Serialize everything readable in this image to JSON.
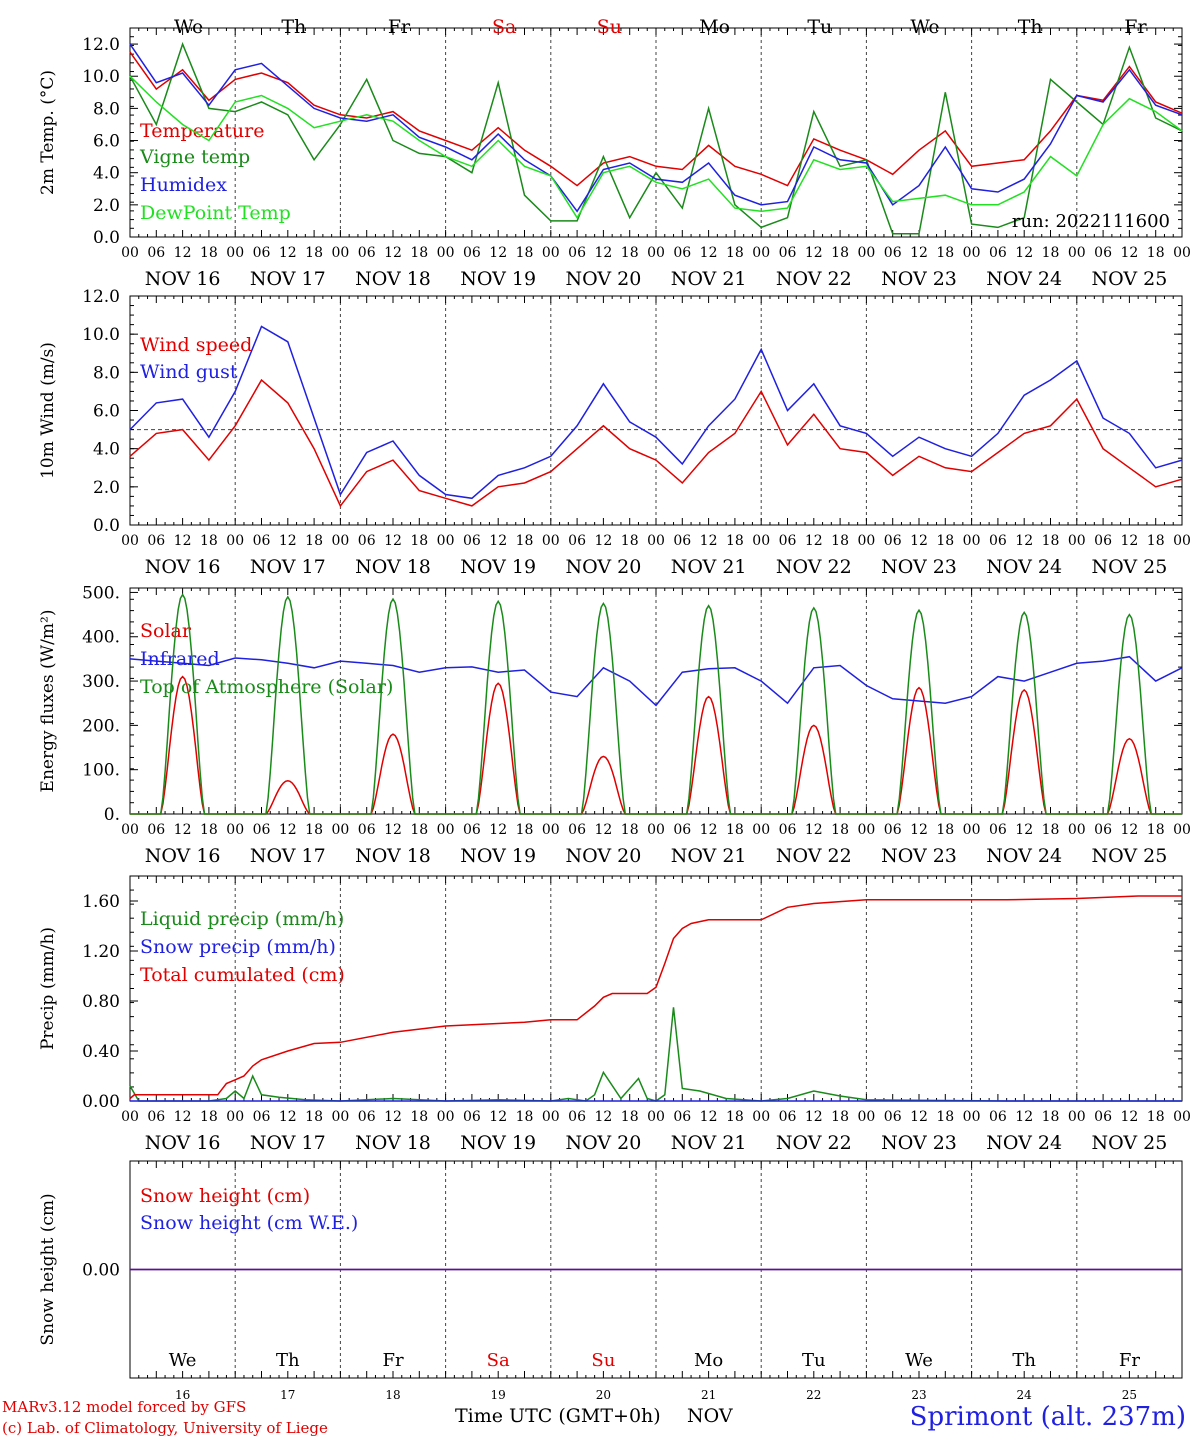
{
  "run_label": "run: 2022111600",
  "days": [
    "We",
    "Th",
    "Fr",
    "Sa",
    "Su",
    "Mo",
    "Tu",
    "We",
    "Th",
    "Fr"
  ],
  "weekend_color": "#e00000",
  "weekend_index": [
    3,
    4
  ],
  "date_labels": [
    "NOV 16",
    "NOV 17",
    "NOV 18",
    "NOV 19",
    "NOV 20",
    "NOV 21",
    "NOV 22",
    "NOV 23",
    "NOV 24",
    "NOV 25"
  ],
  "day_numbers": [
    "16",
    "17",
    "18",
    "19",
    "20",
    "21",
    "22",
    "23",
    "24",
    "25"
  ],
  "hour_ticks": [
    "00",
    "06",
    "12",
    "18"
  ],
  "end_hour_label": "00",
  "footer": {
    "credit_line1": "MARv3.12 model forced by GFS",
    "credit_line2": "(c) Lab. of Climatology, University of Liege",
    "time_label": "Time UTC (GMT+0h)",
    "month_label": "NOV",
    "station": "Sprimont (alt. 237m)"
  },
  "chart_data": [
    {
      "type": "line",
      "ylabel": "2m Temp. (°C)",
      "ylim": [
        0,
        13
      ],
      "yticks": [
        "0.0",
        "2.0",
        "4.0",
        "6.0",
        "8.0",
        "10.0",
        "12.0"
      ],
      "series": [
        {
          "name": "Temperature",
          "color": "#e00000",
          "x": [
            0,
            6,
            12,
            18,
            24,
            30,
            36,
            42,
            48,
            54,
            60,
            66,
            72,
            78,
            84,
            90,
            96,
            102,
            108,
            114,
            120,
            126,
            132,
            138,
            144,
            150,
            156,
            162,
            168,
            174,
            180,
            186,
            192,
            198,
            204,
            210,
            216,
            222,
            228,
            234,
            240
          ],
          "values": [
            11.5,
            9.2,
            10.4,
            8.5,
            9.8,
            10.2,
            9.6,
            8.2,
            7.6,
            7.4,
            7.8,
            6.6,
            6.0,
            5.4,
            6.8,
            5.4,
            4.4,
            3.2,
            4.6,
            5.0,
            4.4,
            4.2,
            5.7,
            4.4,
            3.9,
            3.2,
            6.1,
            5.4,
            4.8,
            3.9,
            5.4,
            6.6,
            4.4,
            4.6,
            4.8,
            6.6,
            8.8,
            8.5,
            10.6,
            8.4,
            7.7
          ]
        },
        {
          "name": "Vigne temp",
          "color": "#1a8a1a",
          "x": [
            0,
            6,
            12,
            18,
            24,
            30,
            36,
            42,
            48,
            54,
            60,
            66,
            72,
            78,
            84,
            90,
            96,
            102,
            108,
            114,
            120,
            126,
            132,
            138,
            144,
            150,
            156,
            162,
            168,
            174,
            180,
            186,
            192,
            198,
            204,
            210,
            216,
            222,
            228,
            234,
            240
          ],
          "values": [
            10.0,
            7.0,
            12.0,
            8.0,
            7.8,
            8.4,
            7.6,
            4.8,
            7.0,
            9.8,
            6.0,
            5.2,
            5.0,
            4.0,
            9.6,
            2.6,
            1.0,
            1.0,
            5.0,
            1.2,
            4.0,
            1.8,
            8.0,
            2.0,
            0.6,
            1.2,
            7.8,
            4.4,
            4.8,
            0.2,
            0.2,
            9.0,
            0.8,
            0.6,
            1.2,
            9.8,
            8.4,
            7.0,
            11.8,
            7.4,
            6.6
          ]
        },
        {
          "name": "Humidex",
          "color": "#2020e0",
          "x": [
            0,
            6,
            12,
            18,
            24,
            30,
            36,
            42,
            48,
            54,
            60,
            66,
            72,
            78,
            84,
            90,
            96,
            102,
            108,
            114,
            120,
            126,
            132,
            138,
            144,
            150,
            156,
            162,
            168,
            174,
            180,
            186,
            192,
            198,
            204,
            210,
            216,
            222,
            228,
            234,
            240
          ],
          "values": [
            12.0,
            9.6,
            10.2,
            8.2,
            10.4,
            10.8,
            9.4,
            8.0,
            7.4,
            7.2,
            7.6,
            6.2,
            5.6,
            4.8,
            6.4,
            4.8,
            3.8,
            1.6,
            4.2,
            4.6,
            3.6,
            3.4,
            4.6,
            2.6,
            2.0,
            2.2,
            5.6,
            4.8,
            4.6,
            2.0,
            3.2,
            5.6,
            3.0,
            2.8,
            3.6,
            5.8,
            8.8,
            8.4,
            10.4,
            8.2,
            7.6
          ]
        },
        {
          "name": "DewPoint Temp",
          "color": "#22e022",
          "x": [
            0,
            6,
            12,
            18,
            24,
            30,
            36,
            42,
            48,
            54,
            60,
            66,
            72,
            78,
            84,
            90,
            96,
            102,
            108,
            114,
            120,
            126,
            132,
            138,
            144,
            150,
            156,
            162,
            168,
            174,
            180,
            186,
            192,
            198,
            204,
            210,
            216,
            222,
            228,
            234,
            240
          ],
          "values": [
            10.0,
            8.4,
            7.0,
            6.0,
            8.4,
            8.8,
            8.0,
            6.8,
            7.2,
            7.6,
            7.2,
            6.0,
            5.0,
            4.4,
            6.0,
            4.4,
            3.8,
            1.2,
            4.0,
            4.4,
            3.4,
            3.0,
            3.6,
            1.8,
            1.6,
            1.8,
            4.8,
            4.2,
            4.4,
            2.2,
            2.4,
            2.6,
            2.0,
            2.0,
            2.8,
            5.0,
            3.8,
            7.0,
            8.6,
            7.8,
            6.6
          ]
        }
      ]
    },
    {
      "type": "line",
      "ylabel": "10m Wind (m/s)",
      "ylim": [
        0,
        12
      ],
      "yticks": [
        "0.0",
        "2.0",
        "4.0",
        "6.0",
        "8.0",
        "10.0",
        "12.0"
      ],
      "ref_line": 5,
      "series": [
        {
          "name": "Wind speed",
          "color": "#e00000",
          "x": [
            0,
            6,
            12,
            18,
            24,
            30,
            36,
            42,
            48,
            54,
            60,
            66,
            72,
            78,
            84,
            90,
            96,
            102,
            108,
            114,
            120,
            126,
            132,
            138,
            144,
            150,
            156,
            162,
            168,
            174,
            180,
            186,
            192,
            198,
            204,
            210,
            216,
            222,
            228,
            234,
            240
          ],
          "values": [
            3.6,
            4.8,
            5.0,
            3.4,
            5.2,
            7.6,
            6.4,
            4.0,
            1.0,
            2.8,
            3.4,
            1.8,
            1.4,
            1.0,
            2.0,
            2.2,
            2.8,
            4.0,
            5.2,
            4.0,
            3.4,
            2.2,
            3.8,
            4.8,
            7.0,
            4.2,
            5.8,
            4.0,
            3.8,
            2.6,
            3.6,
            3.0,
            2.8,
            3.8,
            4.8,
            5.2,
            6.6,
            4.0,
            3.0,
            2.0,
            2.4
          ]
        },
        {
          "name": "Wind gust",
          "color": "#2020e0",
          "x": [
            0,
            6,
            12,
            18,
            24,
            30,
            36,
            42,
            48,
            54,
            60,
            66,
            72,
            78,
            84,
            90,
            96,
            102,
            108,
            114,
            120,
            126,
            132,
            138,
            144,
            150,
            156,
            162,
            168,
            174,
            180,
            186,
            192,
            198,
            204,
            210,
            216,
            222,
            228,
            234,
            240
          ],
          "values": [
            5.0,
            6.4,
            6.6,
            4.6,
            7.0,
            10.4,
            9.6,
            5.6,
            1.6,
            3.8,
            4.4,
            2.6,
            1.6,
            1.4,
            2.6,
            3.0,
            3.6,
            5.2,
            7.4,
            5.4,
            4.6,
            3.2,
            5.2,
            6.6,
            9.2,
            6.0,
            7.4,
            5.2,
            4.8,
            3.6,
            4.6,
            4.0,
            3.6,
            4.8,
            6.8,
            7.6,
            8.6,
            5.6,
            4.8,
            3.0,
            3.4
          ]
        }
      ]
    },
    {
      "type": "line",
      "ylabel": "Energy fluxes (W/m²)",
      "ylim": [
        0,
        510
      ],
      "yticks": [
        "0.",
        "100.",
        "200.",
        "300.",
        "400.",
        "500."
      ],
      "series": [
        {
          "name": "Solar",
          "color": "#e00000",
          "day_peaks": [
            310,
            75,
            180,
            295,
            130,
            265,
            200,
            285,
            280,
            170
          ]
        },
        {
          "name": "Infrared",
          "color": "#2020e0",
          "x": [
            0,
            6,
            12,
            18,
            24,
            30,
            36,
            42,
            48,
            54,
            60,
            66,
            72,
            78,
            84,
            90,
            96,
            102,
            108,
            114,
            120,
            126,
            132,
            138,
            144,
            150,
            156,
            162,
            168,
            174,
            180,
            186,
            192,
            198,
            204,
            210,
            216,
            222,
            228,
            234,
            240
          ],
          "values": [
            350,
            345,
            340,
            335,
            352,
            348,
            340,
            330,
            345,
            340,
            335,
            320,
            330,
            332,
            320,
            325,
            275,
            265,
            330,
            300,
            245,
            320,
            328,
            330,
            300,
            250,
            330,
            335,
            290,
            260,
            255,
            250,
            265,
            310,
            300,
            320,
            340,
            345,
            355,
            300,
            330
          ]
        },
        {
          "name": "Top of Atmosphere (Solar)",
          "color": "#1a8a1a",
          "day_peaks": [
            495,
            490,
            485,
            480,
            475,
            470,
            465,
            460,
            455,
            450
          ]
        }
      ]
    },
    {
      "type": "line",
      "ylabel": "Precip (mm/h)",
      "ylim": [
        0,
        1.8
      ],
      "yticks": [
        "0.00",
        "0.40",
        "0.80",
        "1.20",
        "1.60"
      ],
      "series": [
        {
          "name": "Liquid precip (mm/h)",
          "color": "#1a8a1a",
          "x": [
            0,
            2,
            6,
            12,
            18,
            22,
            24,
            26,
            28,
            30,
            34,
            40,
            48,
            60,
            72,
            84,
            96,
            100,
            104,
            106,
            108,
            112,
            116,
            118,
            120,
            122,
            124,
            126,
            130,
            136,
            144,
            150,
            156,
            162,
            168,
            200,
            240
          ],
          "values": [
            0.12,
            0.0,
            0.0,
            0.0,
            0.0,
            0.02,
            0.08,
            0.02,
            0.2,
            0.05,
            0.03,
            0.01,
            0.0,
            0.02,
            0.0,
            0.01,
            0.0,
            0.02,
            0.0,
            0.05,
            0.23,
            0.02,
            0.18,
            0.02,
            0.0,
            0.05,
            0.75,
            0.1,
            0.08,
            0.02,
            0.0,
            0.02,
            0.08,
            0.04,
            0.01,
            0.0,
            0.0
          ]
        },
        {
          "name": "Snow precip (mm/h)",
          "color": "#2020e0",
          "x": [
            0,
            240
          ],
          "values": [
            0,
            0
          ]
        },
        {
          "name": "Total cumulated (cm)",
          "color": "#e00000",
          "x": [
            0,
            1,
            20,
            22,
            24,
            26,
            28,
            30,
            36,
            42,
            48,
            60,
            72,
            84,
            90,
            96,
            102,
            106,
            108,
            110,
            112,
            118,
            120,
            122,
            124,
            126,
            128,
            132,
            144,
            150,
            156,
            168,
            180,
            200,
            216,
            230,
            240
          ],
          "values": [
            0.02,
            0.05,
            0.05,
            0.14,
            0.17,
            0.2,
            0.28,
            0.33,
            0.4,
            0.46,
            0.47,
            0.55,
            0.6,
            0.62,
            0.63,
            0.65,
            0.65,
            0.76,
            0.83,
            0.86,
            0.86,
            0.86,
            0.91,
            1.1,
            1.3,
            1.38,
            1.42,
            1.45,
            1.45,
            1.55,
            1.58,
            1.61,
            1.61,
            1.61,
            1.62,
            1.64,
            1.64
          ]
        }
      ]
    },
    {
      "type": "line",
      "ylabel": "Snow height (cm)",
      "ylim": [
        -1,
        1
      ],
      "yticks": [
        "0.00"
      ],
      "series": [
        {
          "name": "Snow height (cm)",
          "color": "#e00000",
          "x": [
            0,
            240
          ],
          "values": [
            0,
            0
          ]
        },
        {
          "name": "Snow height (cm W.E.)",
          "color": "#2020e0",
          "x": [
            0,
            240
          ],
          "values": [
            0,
            0
          ]
        }
      ]
    }
  ]
}
